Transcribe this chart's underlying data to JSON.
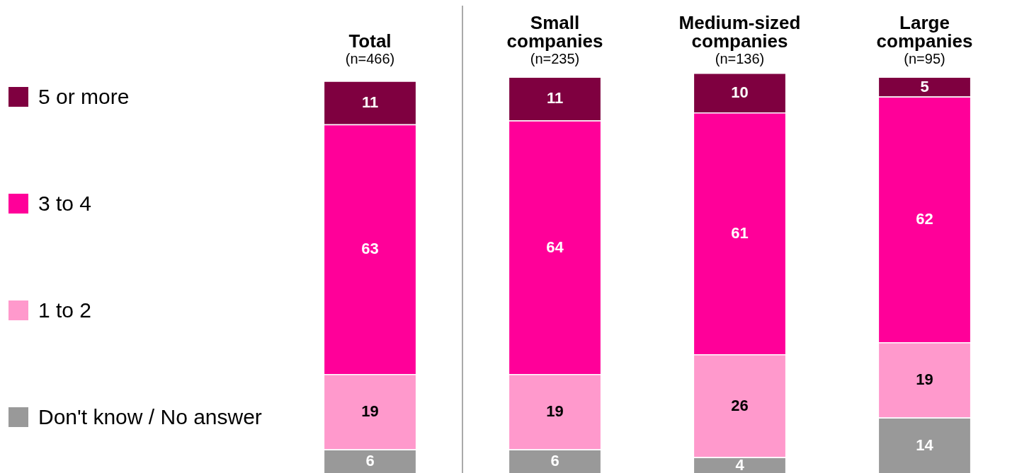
{
  "chart_data": {
    "type": "bar",
    "stacked": true,
    "data_labels": true,
    "legend": "left",
    "categories": [
      "Total\n(n=466)",
      "Small\ncompanies\n(n=235)",
      "Medium-sized\ncompanies\n(n=136)",
      "Large\ncompanies\n(n=95)"
    ],
    "series": [
      {
        "name": "Don't know / No answer",
        "color": "#999999",
        "values": [
          6,
          6,
          4,
          14
        ]
      },
      {
        "name": "1 to 2",
        "color": "#ff99cc",
        "values": [
          19,
          19,
          26,
          19
        ]
      },
      {
        "name": "3 to 4",
        "color": "#ff0099",
        "values": [
          63,
          64,
          61,
          62
        ]
      },
      {
        "name": "5 or more",
        "color": "#7f0040",
        "values": [
          11,
          11,
          10,
          5
        ]
      }
    ]
  }
}
